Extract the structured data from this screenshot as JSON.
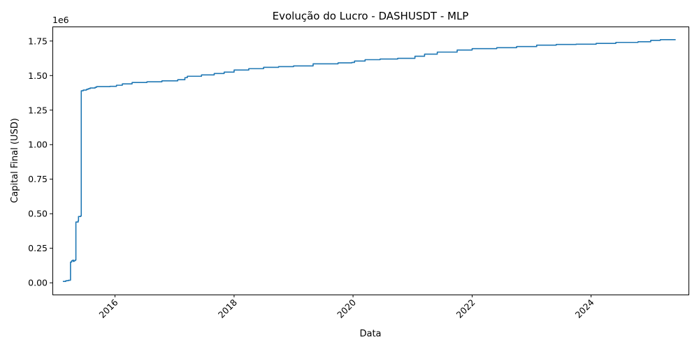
{
  "chart_data": {
    "type": "line",
    "title": "Evolução do Lucro - DASHUSDT - MLP",
    "xlabel": "Data",
    "ylabel": "Capital Final (USD)",
    "y_offset_text": "1e6",
    "x_ticks": [
      "2016",
      "2018",
      "2020",
      "2022",
      "2024"
    ],
    "y_ticks": [
      "0.00",
      "0.25",
      "0.50",
      "0.75",
      "1.00",
      "1.25",
      "1.50",
      "1.75"
    ],
    "xlim": [
      "2014-12-13",
      "2025-08-21"
    ],
    "ylim": [
      -0.085,
      1.855
    ],
    "y_unit": "1e6 USD",
    "grid": false,
    "color": "#1f77b4",
    "series": [
      {
        "points": [
          [
            "2015-02-15",
            0.01
          ],
          [
            "2015-03-05",
            0.015
          ],
          [
            "2015-03-20",
            0.018
          ],
          [
            "2015-04-01",
            0.02
          ],
          [
            "2015-04-03",
            0.15
          ],
          [
            "2015-04-10",
            0.16
          ],
          [
            "2015-04-18",
            0.165
          ],
          [
            "2015-04-20",
            0.155
          ],
          [
            "2015-04-25",
            0.16
          ],
          [
            "2015-05-02",
            0.165
          ],
          [
            "2015-05-06",
            0.44
          ],
          [
            "2015-05-20",
            0.45
          ],
          [
            "2015-05-22",
            0.48
          ],
          [
            "2015-06-05",
            0.485
          ],
          [
            "2015-06-08",
            1.39
          ],
          [
            "2015-06-20",
            1.395
          ],
          [
            "2015-07-10",
            1.4
          ],
          [
            "2015-07-20",
            1.405
          ],
          [
            "2015-08-01",
            1.41
          ],
          [
            "2015-09-01",
            1.415
          ],
          [
            "2015-09-10",
            1.42
          ],
          [
            "2015-10-15",
            1.42
          ],
          [
            "2015-12-01",
            1.422
          ],
          [
            "2016-01-10",
            1.43
          ],
          [
            "2016-02-15",
            1.44
          ],
          [
            "2016-04-15",
            1.45
          ],
          [
            "2016-07-15",
            1.455
          ],
          [
            "2016-10-15",
            1.462
          ],
          [
            "2017-01-20",
            1.47
          ],
          [
            "2017-03-05",
            1.485
          ],
          [
            "2017-03-20",
            1.495
          ],
          [
            "2017-06-15",
            1.505
          ],
          [
            "2017-09-01",
            1.515
          ],
          [
            "2017-11-01",
            1.525
          ],
          [
            "2018-01-01",
            1.54
          ],
          [
            "2018-04-01",
            1.55
          ],
          [
            "2018-07-01",
            1.56
          ],
          [
            "2018-10-01",
            1.565
          ],
          [
            "2019-01-01",
            1.57
          ],
          [
            "2019-05-01",
            1.585
          ],
          [
            "2019-10-01",
            1.592
          ],
          [
            "2019-12-25",
            1.595
          ],
          [
            "2020-01-10",
            1.605
          ],
          [
            "2020-03-15",
            1.615
          ],
          [
            "2020-06-15",
            1.62
          ],
          [
            "2020-10-01",
            1.625
          ],
          [
            "2021-01-15",
            1.64
          ],
          [
            "2021-03-15",
            1.655
          ],
          [
            "2021-06-01",
            1.67
          ],
          [
            "2021-10-01",
            1.685
          ],
          [
            "2022-01-01",
            1.695
          ],
          [
            "2022-06-01",
            1.702
          ],
          [
            "2022-10-01",
            1.71
          ],
          [
            "2023-02-01",
            1.72
          ],
          [
            "2023-06-01",
            1.725
          ],
          [
            "2023-10-01",
            1.727
          ],
          [
            "2024-02-01",
            1.733
          ],
          [
            "2024-06-01",
            1.74
          ],
          [
            "2024-10-15",
            1.745
          ],
          [
            "2025-01-01",
            1.755
          ],
          [
            "2025-03-01",
            1.76
          ],
          [
            "2025-06-01",
            1.762
          ]
        ]
      }
    ]
  }
}
